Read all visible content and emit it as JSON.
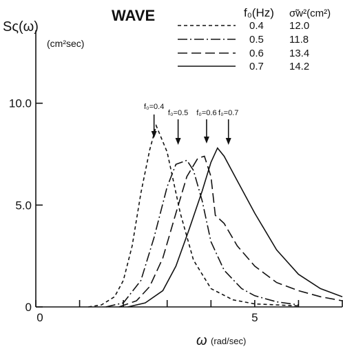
{
  "chart_data": {
    "type": "line",
    "title": "WAVE",
    "ylabel": "Sς(ω)",
    "ylabel_unit": "(cm²sec)",
    "xlabel": "ω",
    "xlabel_unit": "(rad/sec)",
    "xlim": [
      0,
      7
    ],
    "ylim": [
      0,
      15
    ],
    "x_ticks": [
      0,
      1,
      2,
      3,
      4,
      5,
      6,
      7
    ],
    "x_tick_labels": [
      {
        "value": 0,
        "label": "0"
      },
      {
        "value": 5,
        "label": "5"
      }
    ],
    "y_ticks": [
      0,
      5,
      10
    ],
    "y_tick_labels": [
      {
        "value": 0,
        "label": "0"
      },
      {
        "value": 5,
        "label": "5.0"
      },
      {
        "value": 10,
        "label": "10.0"
      }
    ],
    "grid": false,
    "legend_headers": {
      "f0": "f₀(Hz)",
      "sigma": "σ̃w²(cm²)"
    },
    "series": [
      {
        "name": "0.4",
        "sigma_w2": "12.0",
        "dash": "dashed",
        "x": [
          1.2,
          1.5,
          1.8,
          2.0,
          2.2,
          2.4,
          2.6,
          2.75,
          3.0,
          3.3,
          3.6,
          4.0,
          4.5,
          5.0,
          6.0
        ],
        "y": [
          0.0,
          0.1,
          0.5,
          1.3,
          3.0,
          5.6,
          7.7,
          8.9,
          7.6,
          4.6,
          2.3,
          0.9,
          0.35,
          0.15,
          0.05
        ]
      },
      {
        "name": "0.5",
        "sigma_w2": "11.8",
        "dash": "dash-dot",
        "x": [
          1.6,
          2.0,
          2.4,
          2.7,
          3.0,
          3.2,
          3.45,
          3.6,
          3.8,
          4.0,
          4.3,
          4.7,
          5.0,
          5.5,
          6.0
        ],
        "y": [
          0.0,
          0.2,
          1.3,
          3.4,
          5.9,
          7.0,
          7.2,
          6.7,
          5.2,
          3.2,
          1.8,
          0.9,
          0.55,
          0.25,
          0.1
        ]
      },
      {
        "name": "0.6",
        "sigma_w2": "13.4",
        "dash": "long-dash",
        "x": [
          1.9,
          2.3,
          2.6,
          2.9,
          3.2,
          3.45,
          3.7,
          3.85,
          4.0,
          4.1,
          4.3,
          4.6,
          5.0,
          5.5,
          6.0,
          6.5,
          7.0
        ],
        "y": [
          0.0,
          0.3,
          1.0,
          2.4,
          4.6,
          6.4,
          7.3,
          7.4,
          6.4,
          4.5,
          4.1,
          3.0,
          2.0,
          1.2,
          0.8,
          0.5,
          0.3
        ]
      },
      {
        "name": "0.7",
        "sigma_w2": "14.2",
        "dash": "solid",
        "x": [
          2.1,
          2.5,
          2.9,
          3.2,
          3.5,
          3.8,
          4.0,
          4.15,
          4.3,
          4.6,
          5.0,
          5.5,
          6.0,
          6.5,
          7.0
        ],
        "y": [
          0.0,
          0.2,
          0.8,
          2.0,
          3.8,
          5.7,
          7.1,
          7.8,
          7.4,
          6.2,
          4.6,
          2.8,
          1.6,
          0.9,
          0.5
        ]
      }
    ],
    "annotations": [
      {
        "label": "f₀=0.4",
        "x": 2.7
      },
      {
        "label": "f₀=0.5",
        "x": 3.25
      },
      {
        "label": "f₀=0.6",
        "x": 3.9
      },
      {
        "label": "f₀=0.7",
        "x": 4.4
      }
    ]
  }
}
